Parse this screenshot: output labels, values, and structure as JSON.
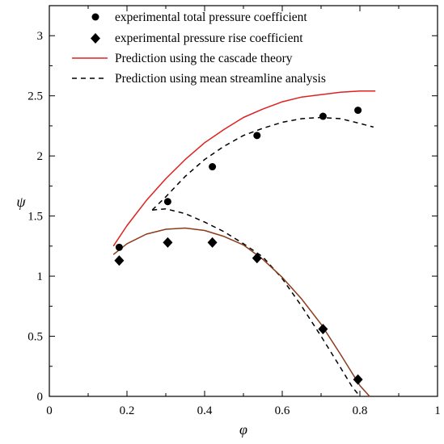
{
  "chart_data": {
    "type": "scatter",
    "xlabel": "φ",
    "ylabel": "ψ",
    "xlim": [
      0,
      1
    ],
    "ylim": [
      0,
      3.25
    ],
    "x_ticks": [
      "0",
      "0.2",
      "0.4",
      "0.6",
      "0.8",
      "1"
    ],
    "y_ticks": [
      "0",
      "0.5",
      "1",
      "1.5",
      "2",
      "2.5",
      "3"
    ],
    "grid": false,
    "legend_position": "top",
    "series": [
      {
        "name": "experimental total pressure coefficient",
        "kind": "points",
        "marker": "circle",
        "color": "#000000",
        "x": [
          0.18,
          0.305,
          0.42,
          0.535,
          0.705,
          0.795
        ],
        "y": [
          1.24,
          1.62,
          1.91,
          2.17,
          2.33,
          2.38
        ]
      },
      {
        "name": "experimental pressure rise coefficient",
        "kind": "points",
        "marker": "diamond",
        "color": "#000000",
        "x": [
          0.18,
          0.305,
          0.42,
          0.535,
          0.705,
          0.795
        ],
        "y": [
          1.13,
          1.28,
          1.28,
          1.15,
          0.56,
          0.14
        ]
      },
      {
        "name": "Prediction using the cascade theory",
        "kind": "line",
        "style": "solid",
        "color": "#e02020",
        "x": [
          0.165,
          0.2,
          0.25,
          0.3,
          0.35,
          0.4,
          0.45,
          0.5,
          0.55,
          0.6,
          0.65,
          0.7,
          0.75,
          0.8,
          0.84
        ],
        "y": [
          1.25,
          1.42,
          1.63,
          1.81,
          1.97,
          2.11,
          2.22,
          2.32,
          2.39,
          2.45,
          2.49,
          2.51,
          2.53,
          2.54,
          2.54
        ]
      },
      {
        "name": "Prediction using mean streamline analysis",
        "kind": "line",
        "style": "dashed",
        "color": "#000000",
        "x": [
          0.265,
          0.3,
          0.35,
          0.4,
          0.45,
          0.5,
          0.55,
          0.6,
          0.65,
          0.7,
          0.75,
          0.8,
          0.835
        ],
        "y": [
          1.55,
          1.66,
          1.83,
          1.97,
          2.08,
          2.17,
          2.23,
          2.28,
          2.31,
          2.32,
          2.31,
          2.27,
          2.24
        ]
      },
      {
        "name": "",
        "kind": "line",
        "style": "dashed",
        "color": "#000000",
        "x": [
          0.265,
          0.3,
          0.35,
          0.4,
          0.45,
          0.5,
          0.55,
          0.6,
          0.65,
          0.7,
          0.75,
          0.78,
          0.8
        ],
        "y": [
          1.55,
          1.56,
          1.52,
          1.45,
          1.37,
          1.27,
          1.16,
          0.98,
          0.75,
          0.5,
          0.24,
          0.08,
          0.0
        ]
      },
      {
        "name": "",
        "kind": "line",
        "style": "solid",
        "color": "#8b3a1a",
        "x": [
          0.165,
          0.2,
          0.25,
          0.3,
          0.35,
          0.4,
          0.45,
          0.5,
          0.55,
          0.6,
          0.65,
          0.7,
          0.75,
          0.8,
          0.825
        ],
        "y": [
          1.18,
          1.27,
          1.35,
          1.39,
          1.4,
          1.38,
          1.33,
          1.26,
          1.14,
          0.99,
          0.81,
          0.6,
          0.35,
          0.09,
          0.0
        ]
      }
    ]
  }
}
